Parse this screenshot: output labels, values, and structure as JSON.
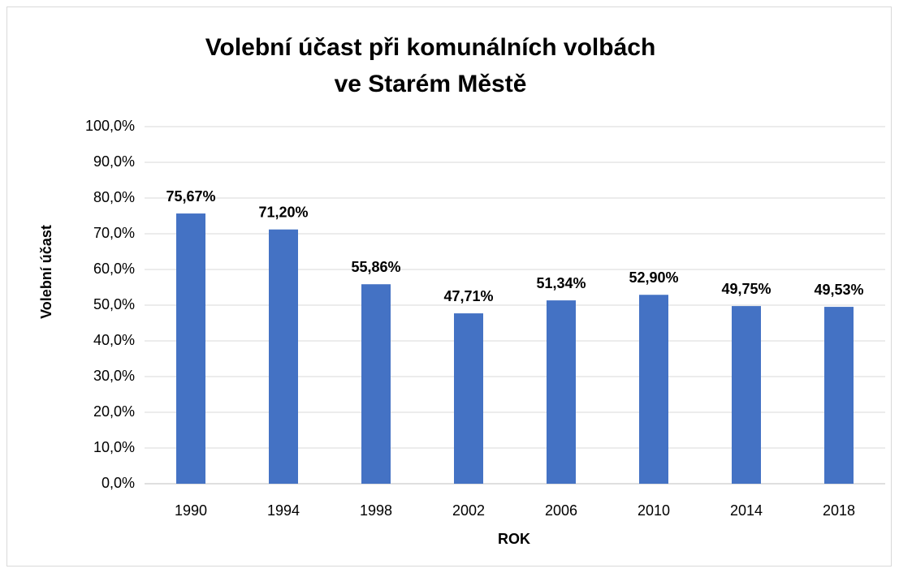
{
  "chart_data": {
    "type": "bar",
    "title": [
      "Volební účast při komunálních volbách",
      "ve Starém Městě"
    ],
    "x_label": "ROK",
    "y_label": "Volební účast",
    "categories": [
      "1990",
      "1994",
      "1998",
      "2002",
      "2006",
      "2010",
      "2014",
      "2018"
    ],
    "values": [
      75.67,
      71.2,
      55.86,
      47.71,
      51.34,
      52.9,
      49.75,
      49.53
    ],
    "value_labels": [
      "75,67%",
      "71,20%",
      "55,86%",
      "47,71%",
      "51,34%",
      "52,90%",
      "49,75%",
      "49,53%"
    ],
    "color": "#4472c4",
    "ylim": [
      0,
      100
    ],
    "yticks": [
      {
        "value": 0,
        "label": "0,0%"
      },
      {
        "value": 10,
        "label": "10,0%"
      },
      {
        "value": 20,
        "label": "20,0%"
      },
      {
        "value": 30,
        "label": "30,0%"
      },
      {
        "value": 40,
        "label": "40,0%"
      },
      {
        "value": 50,
        "label": "50,0%"
      },
      {
        "value": 60,
        "label": "60,0%"
      },
      {
        "value": 70,
        "label": "70,0%"
      },
      {
        "value": 80,
        "label": "80,0%"
      },
      {
        "value": 90,
        "label": "90,0%"
      },
      {
        "value": 100,
        "label": "100,0%"
      }
    ],
    "grid": true
  }
}
